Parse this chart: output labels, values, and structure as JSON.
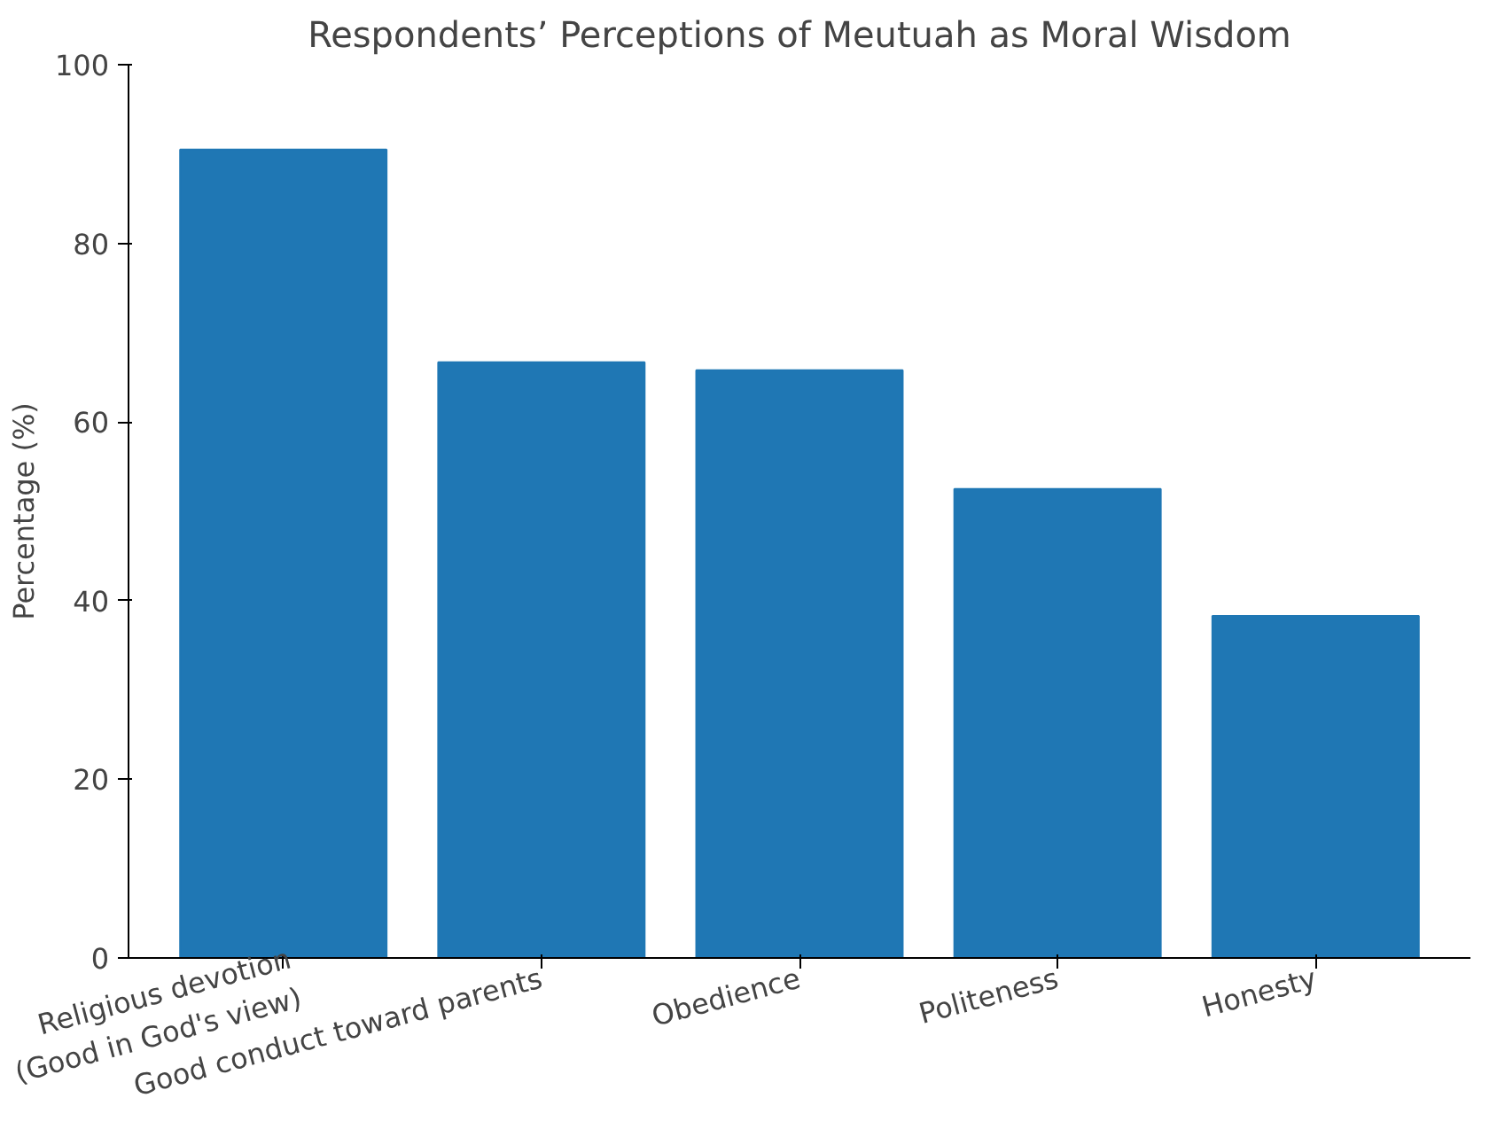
{
  "chart_data": {
    "type": "bar",
    "title": "Respondents’ Perceptions of Meutuah as Moral Wisdom",
    "ylabel": "Percentage (%)",
    "categories": [
      "Religious devotion\n(Good in God's view)",
      "Good conduct toward parents",
      "Obedience",
      "Politeness",
      "Honesty"
    ],
    "values": [
      90.5,
      66.7,
      65.8,
      52.5,
      38.3
    ],
    "color": "#1f77b4",
    "ylim": [
      0,
      100
    ],
    "yticks": [
      0,
      20,
      40,
      60,
      80,
      100
    ],
    "grid": false
  }
}
